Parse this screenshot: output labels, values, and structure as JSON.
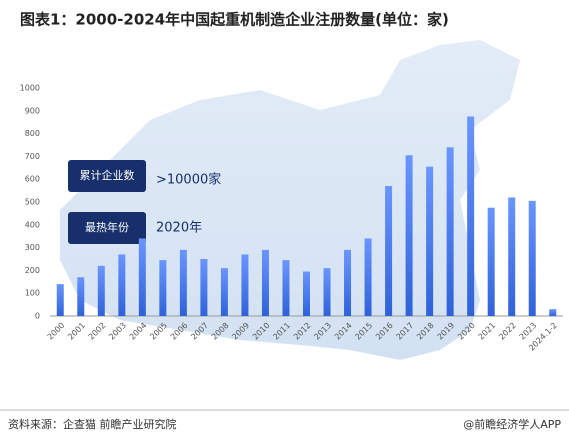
{
  "chart_data": {
    "type": "bar",
    "title": "图表1：2000-2024年中国起重机制造企业注册数量(单位：家)",
    "categories": [
      "2000",
      "2001",
      "2002",
      "2003",
      "2004",
      "2005",
      "2006",
      "2007",
      "2008",
      "2009",
      "2010",
      "2011",
      "2012",
      "2013",
      "2014",
      "2015",
      "2016",
      "2017",
      "2018",
      "2019",
      "2020",
      "2021",
      "2022",
      "2023",
      "2024.1-2"
    ],
    "values": [
      140,
      170,
      220,
      270,
      340,
      245,
      290,
      250,
      210,
      270,
      290,
      245,
      195,
      210,
      290,
      340,
      570,
      705,
      655,
      740,
      875,
      475,
      520,
      505,
      30
    ],
    "color": "#4f7ff0",
    "ylim": [
      0,
      1000
    ],
    "yticks": [
      0,
      100,
      200,
      300,
      400,
      500,
      600,
      700,
      800,
      900,
      1000
    ],
    "grid": false,
    "annotations": [
      {
        "label": "累计企业数",
        "value": ">10000家"
      },
      {
        "label": "最热年份",
        "value": "2020年"
      }
    ],
    "source": "资料来源：企查猫 前瞻产业研究院",
    "credit": "@前瞻经济学人APP"
  }
}
